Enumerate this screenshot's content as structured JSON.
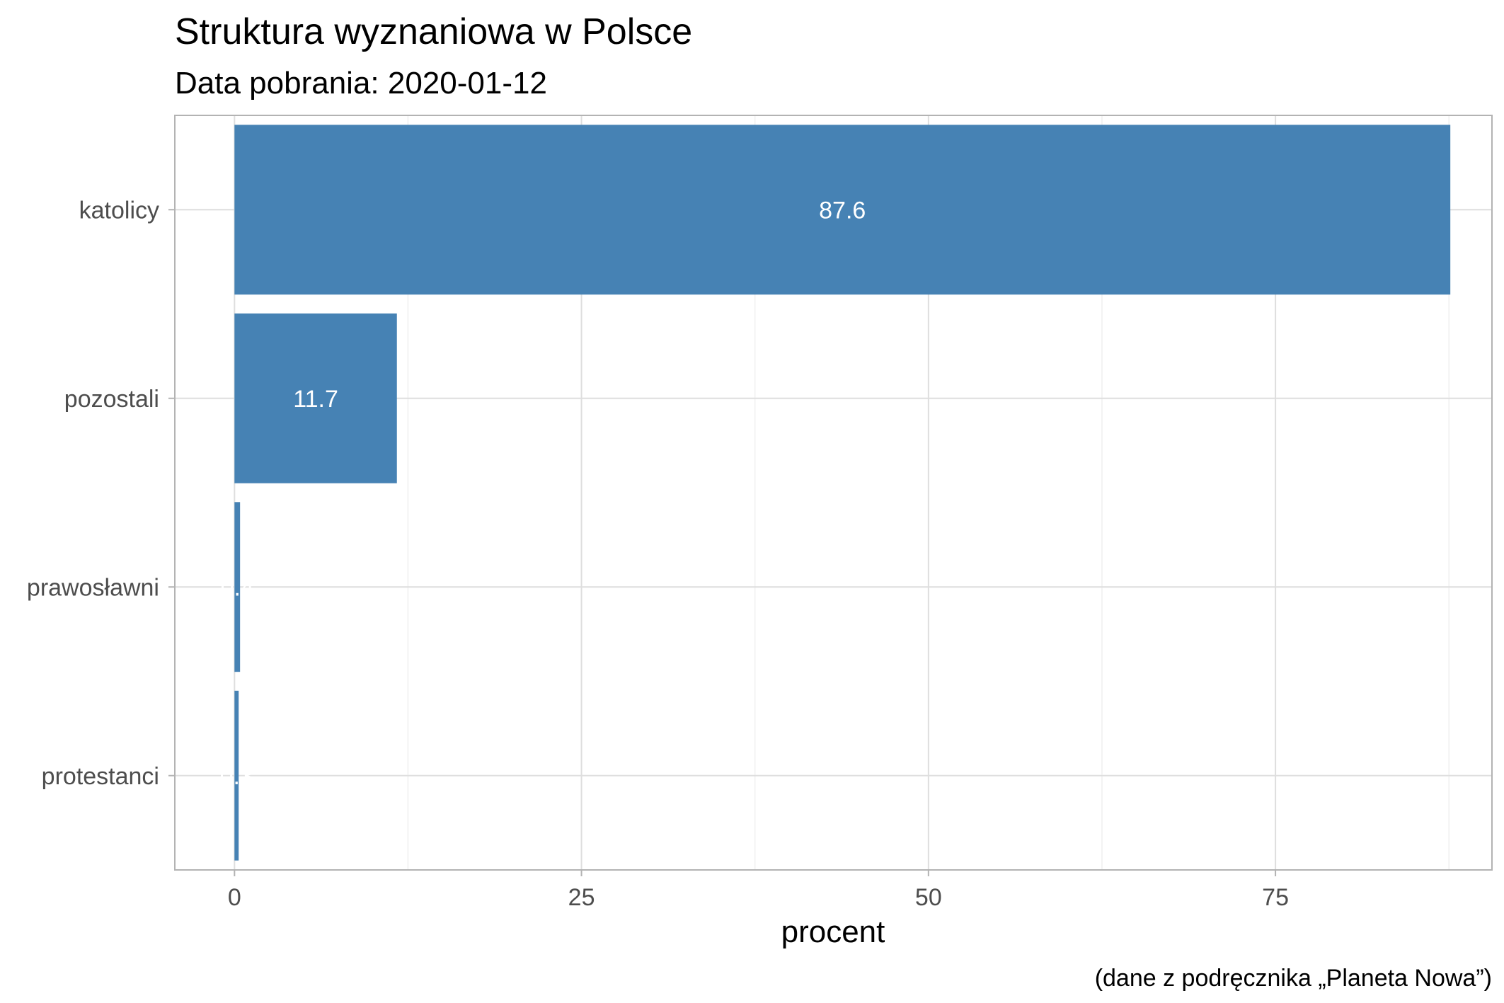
{
  "chart_data": {
    "type": "bar",
    "orientation": "horizontal",
    "title": "Struktura wyznaniowa w Polsce",
    "subtitle": "Data pobrania: 2020-01-12",
    "xlabel": "procent",
    "ylabel": "",
    "caption": "(dane z podręcznika „Planeta Nowa”)",
    "categories": [
      "katolicy",
      "pozostali",
      "prawosławni",
      "protestanci"
    ],
    "values": [
      87.6,
      11.7,
      0.4,
      0.3
    ],
    "data_labels": [
      "87.6",
      "11.7",
      "0.4",
      "0.3"
    ],
    "xlim": [
      -4.3,
      90.6
    ],
    "xticks": [
      0,
      25,
      50,
      75
    ],
    "grid": true,
    "legend": "none",
    "bar_color": "#4682B4"
  }
}
